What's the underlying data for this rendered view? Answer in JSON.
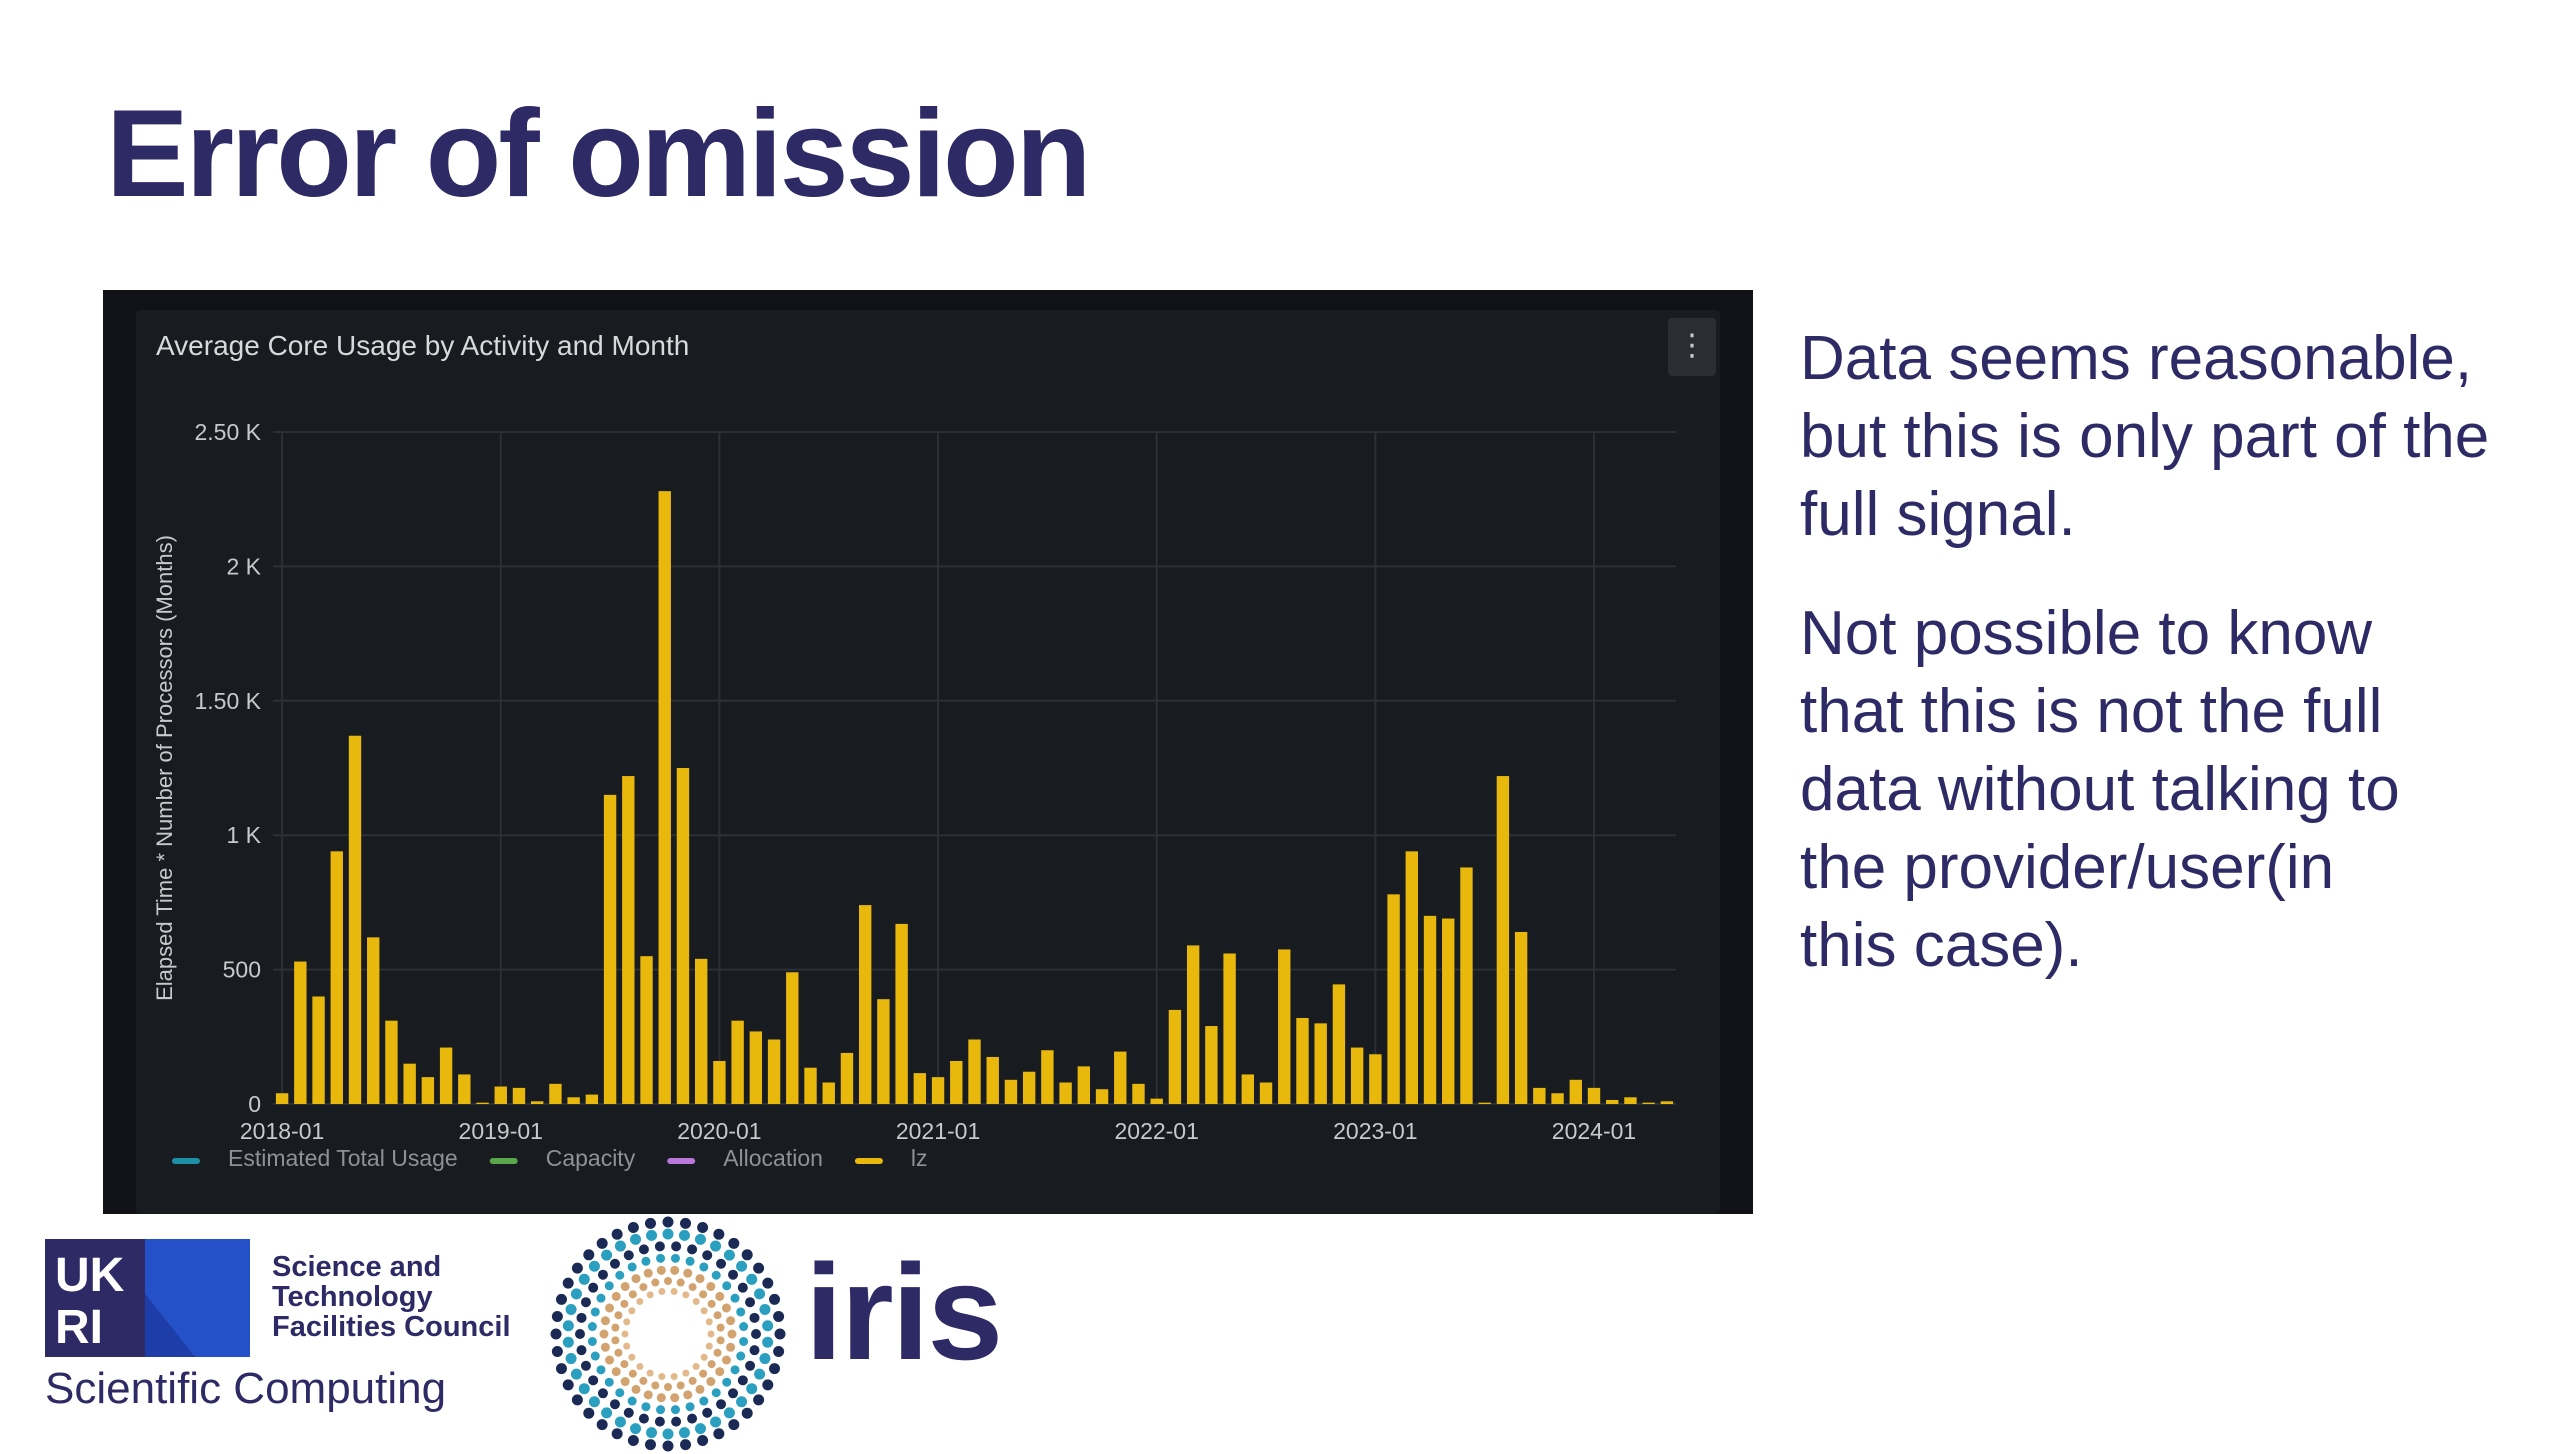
{
  "slide": {
    "title": "Error of omission",
    "text_blocks": [
      [
        "Data seems reasonable,",
        "but this is only part of the",
        "full signal."
      ],
      [
        "Not possible to know",
        "that this is not the full",
        "data without talking to",
        "the provider/user(in",
        "this case)."
      ]
    ]
  },
  "panel": {
    "title": "Average Core Usage by Activity and Month",
    "menu_icon": "⋮",
    "colors": {
      "background": "#181b1f",
      "grid": "#2c3036",
      "text": "#c7c9cc",
      "bar": "#e8b90c"
    }
  },
  "chart_data": {
    "type": "bar",
    "title": "Average Core Usage by Activity and Month",
    "ylabel": "Elapsed Time * Number of Processors (Months)",
    "xlabel": "",
    "ylim": [
      0,
      2500
    ],
    "yticks": [
      0,
      500,
      1000,
      1500,
      2000,
      2500
    ],
    "ytick_labels": [
      "0",
      "500",
      "1 K",
      "1.50 K",
      "2 K",
      "2.50 K"
    ],
    "xticks": [
      "2018-01",
      "2019-01",
      "2020-01",
      "2021-01",
      "2022-01",
      "2023-01",
      "2024-01"
    ],
    "grid": true,
    "legend_position": "bottom-left",
    "series": [
      {
        "name": "Estimated Total Usage",
        "color": "#1f8fa8",
        "values": []
      },
      {
        "name": "Capacity",
        "color": "#5aa64b",
        "values": []
      },
      {
        "name": "Allocation",
        "color": "#b877d9",
        "values": []
      },
      {
        "name": "lz",
        "color": "#e8b90c",
        "values": [
          40,
          530,
          400,
          940,
          1370,
          620,
          310,
          150,
          100,
          210,
          110,
          5,
          65,
          60,
          10,
          75,
          25,
          35,
          1150,
          1220,
          550,
          2280,
          1250,
          540,
          160,
          310,
          270,
          240,
          490,
          135,
          80,
          190,
          740,
          390,
          670,
          115,
          100,
          160,
          240,
          175,
          90,
          120,
          200,
          80,
          140,
          55,
          195,
          75,
          20,
          350,
          590,
          290,
          560,
          110,
          80,
          575,
          320,
          300,
          445,
          210,
          185,
          780,
          940,
          700,
          690,
          880,
          5,
          1220,
          640,
          60,
          40,
          90,
          60,
          15,
          25,
          5,
          10
        ]
      }
    ]
  },
  "logos": {
    "ukri_letters": [
      "UK",
      "RI"
    ],
    "stfc_lines": [
      "Science and",
      "Technology",
      "Facilities Council"
    ],
    "division": "Scientific Computing",
    "iris_word": "iris"
  }
}
